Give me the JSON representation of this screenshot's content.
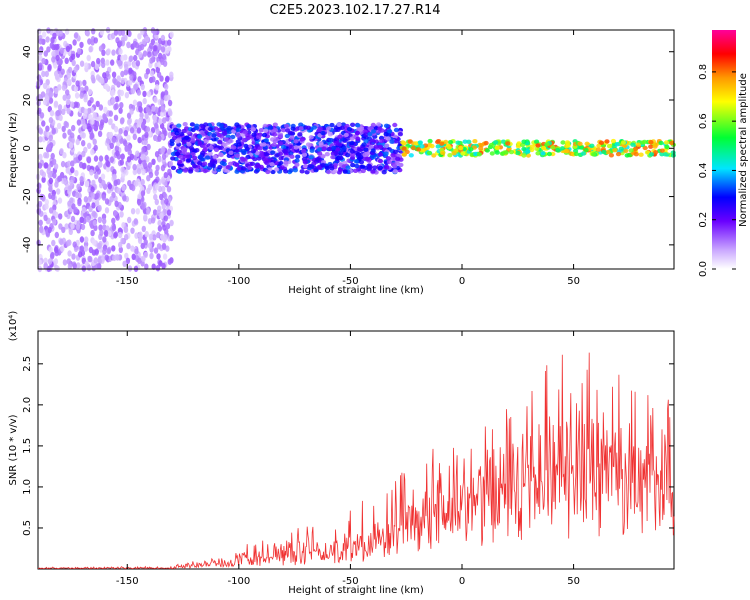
{
  "title": "C2E5.2023.102.17.27.R14",
  "colors": {
    "series": "#f03232",
    "frame": "#000000",
    "background": "#ffffff"
  },
  "chart_data": [
    {
      "type": "heatmap",
      "xlabel": "Height of straight line (km)",
      "ylabel": "Frequency (Hz)",
      "xlim": [
        -190,
        95
      ],
      "ylim": [
        -50,
        49
      ],
      "xticks": [
        -150,
        -100,
        -50,
        0,
        50
      ],
      "yticks": [
        -40,
        -20,
        0,
        20,
        40
      ],
      "grid": false,
      "colorbar": {
        "label": "Normalized spectral amplitude",
        "range": [
          0,
          0.97
        ],
        "ticks": [
          "0.0",
          "0.2",
          "0.4",
          "0.6",
          "0.8"
        ],
        "colormap": "rainbow (white-violet-blue-cyan-green-yellow-orange-red-magenta)"
      },
      "regions": [
        {
          "x": [
            -190,
            -130
          ],
          "freq_band": [
            -50,
            49
          ],
          "amplitude": 0.1
        },
        {
          "x": [
            -130,
            -27
          ],
          "freq_band": [
            -10,
            10
          ],
          "amplitude": 0.25
        },
        {
          "x": [
            -27,
            95
          ],
          "freq_band": [
            -3,
            3
          ],
          "amplitude": 0.75
        }
      ]
    },
    {
      "type": "line",
      "xlabel": "Height of straight line (km)",
      "ylabel": "SNR (10 * v/v)",
      "y_multiplier": "(x10⁴)",
      "xlim": [
        -190,
        95
      ],
      "ylim": [
        0,
        2.9
      ],
      "xticks": [
        -150,
        -100,
        -50,
        0,
        50
      ],
      "yticks": [
        0.5,
        1.0,
        1.5,
        2.0,
        2.5
      ],
      "grid": false,
      "series": [
        {
          "envelope": {
            "x": [
              -190,
              -130,
              -125,
              -100,
              -75,
              -50,
              -25,
              0,
              25,
              50,
              75,
              95
            ],
            "y_base": [
              0.01,
              0.01,
              0.03,
              0.08,
              0.15,
              0.25,
              0.45,
              0.85,
              1.0,
              1.2,
              1.2,
              1.25
            ],
            "y_peak": [
              0.02,
              0.03,
              0.08,
              0.25,
              0.45,
              0.7,
              1.2,
              1.6,
              2.2,
              2.6,
              2.4,
              2.4
            ]
          }
        }
      ]
    }
  ]
}
